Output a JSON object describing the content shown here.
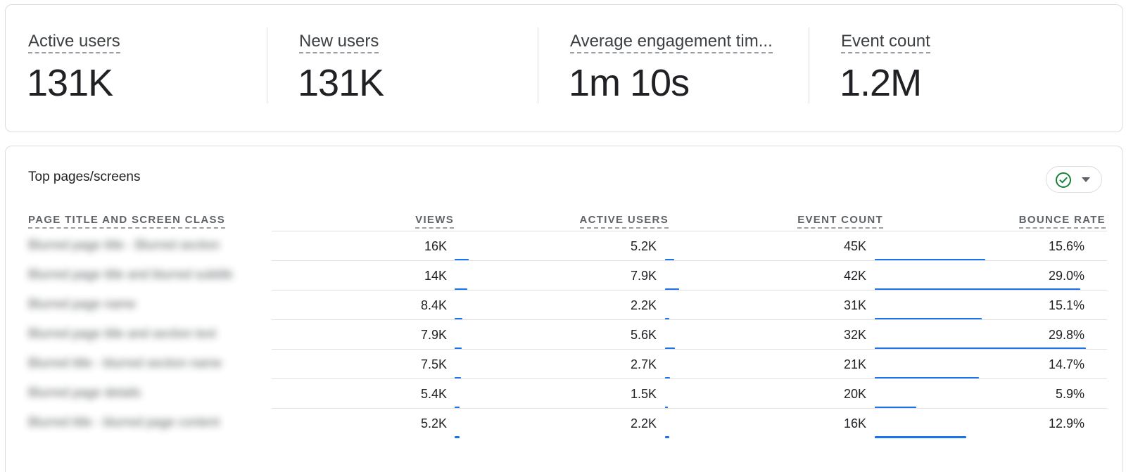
{
  "summary": {
    "metrics": [
      {
        "label": "Active users",
        "value": "131K"
      },
      {
        "label": "New users",
        "value": "131K"
      },
      {
        "label": "Average engagement tim...",
        "value": "1m 10s"
      },
      {
        "label": "Event count",
        "value": "1.2M"
      }
    ]
  },
  "top_pages": {
    "title": "Top pages/screens",
    "column_toggle_icon": "check-circle-icon",
    "columns": [
      "PAGE TITLE AND SCREEN CLASS",
      "VIEWS",
      "ACTIVE USERS",
      "EVENT COUNT",
      "BOUNCE RATE"
    ],
    "rows": [
      {
        "page": "Blurred page title - Blurred section",
        "views": "16K",
        "active_users": "5.2K",
        "event_count": "45K",
        "bounce_rate": "15.6%"
      },
      {
        "page": "Blurred page title and blurred subtitle",
        "views": "14K",
        "active_users": "7.9K",
        "event_count": "42K",
        "bounce_rate": "29.0%"
      },
      {
        "page": "Blurred page name",
        "views": "8.4K",
        "active_users": "2.2K",
        "event_count": "31K",
        "bounce_rate": "15.1%"
      },
      {
        "page": "Blurred page title and section text",
        "views": "7.9K",
        "active_users": "5.6K",
        "event_count": "32K",
        "bounce_rate": "29.8%"
      },
      {
        "page": "Blurred title - blurred section name",
        "views": "7.5K",
        "active_users": "2.7K",
        "event_count": "21K",
        "bounce_rate": "14.7%"
      },
      {
        "page": "Blurred page details",
        "views": "5.4K",
        "active_users": "1.5K",
        "event_count": "20K",
        "bounce_rate": "5.9%"
      },
      {
        "page": "Blurred title - blurred page content",
        "views": "5.2K",
        "active_users": "2.2K",
        "event_count": "16K",
        "bounce_rate": "12.9%"
      }
    ],
    "bar_color": "#1a73e8"
  }
}
